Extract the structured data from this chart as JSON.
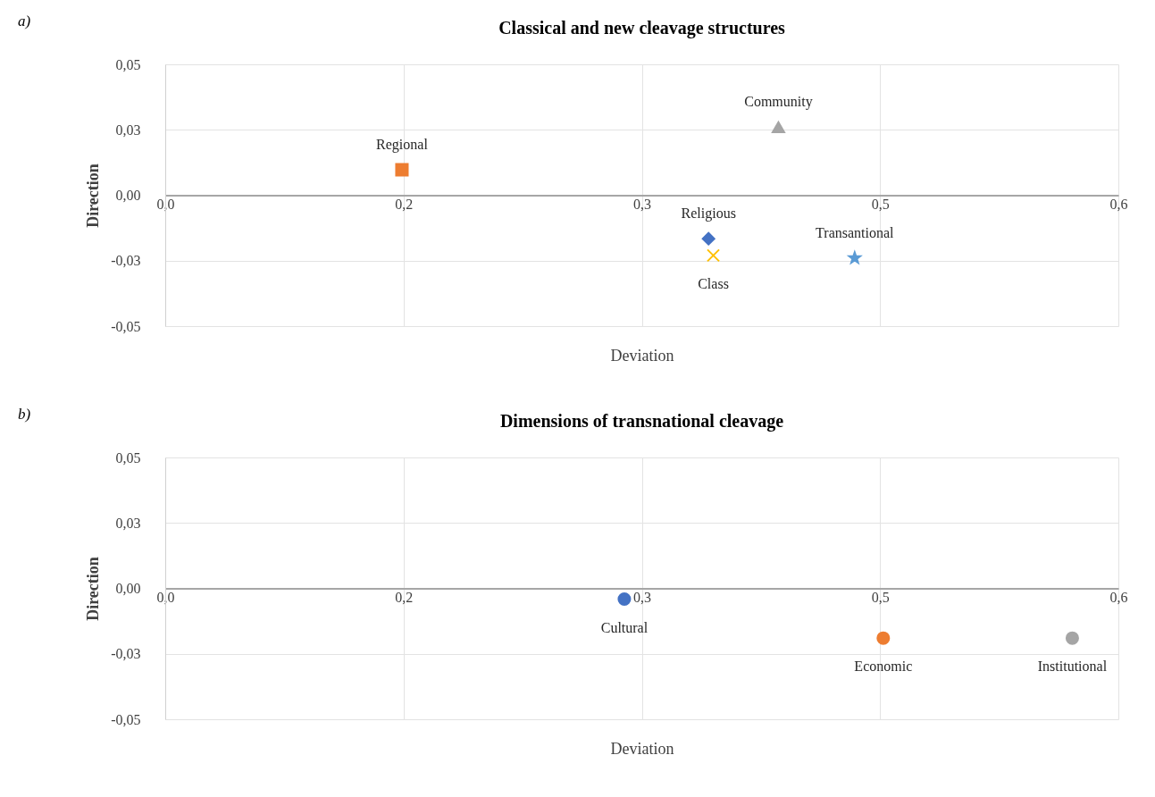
{
  "chart_data": [
    {
      "type": "scatter",
      "title": "Classical and new cleavage structures",
      "xlabel": "Deviation",
      "ylabel": "Direction",
      "annotations": [
        "a)"
      ],
      "grid": true,
      "xlim": [
        0,
        0.6
      ],
      "xticks": [
        {
          "value": 0,
          "label": "0,0"
        },
        {
          "value": 0.15,
          "label": "0,2"
        },
        {
          "value": 0.3,
          "label": "0,3"
        },
        {
          "value": 0.45,
          "label": "0,5"
        },
        {
          "value": 0.6,
          "label": "0,6"
        }
      ],
      "ylim": [
        -0.05,
        0.05
      ],
      "yticks": [
        {
          "value": -0.05,
          "label": "-0,05"
        },
        {
          "value": -0.025,
          "label": "-0,03"
        },
        {
          "value": 0,
          "label": "0,00"
        },
        {
          "value": 0.025,
          "label": "0,03"
        },
        {
          "value": 0.05,
          "label": "0,05"
        }
      ],
      "series": [
        {
          "name": "Regional",
          "color": "#ed7d31",
          "marker": "square",
          "x": [
            0.149
          ],
          "values": [
            0.0097
          ]
        },
        {
          "name": "Community",
          "color": "#a5a5a5",
          "marker": "triangle",
          "x": [
            0.386
          ],
          "values": [
            0.026
          ]
        },
        {
          "name": "Religious",
          "color": "#4472c4",
          "marker": "diamond",
          "x": [
            0.342
          ],
          "values": [
            -0.0166
          ]
        },
        {
          "name": "Class",
          "color": "#ffc000",
          "marker": "cross",
          "x": [
            0.345
          ],
          "values": [
            -0.023
          ]
        },
        {
          "name": "Transantional",
          "color": "#5b9bd5",
          "marker": "star",
          "x": [
            0.434
          ],
          "values": [
            -0.024
          ]
        }
      ]
    },
    {
      "type": "scatter",
      "title": "Dimensions of transnational cleavage",
      "xlabel": "Deviation",
      "ylabel": "Direction",
      "annotations": [
        "b)"
      ],
      "grid": true,
      "xlim": [
        0,
        0.6
      ],
      "xticks": [
        {
          "value": 0,
          "label": "0,0"
        },
        {
          "value": 0.15,
          "label": "0,2"
        },
        {
          "value": 0.3,
          "label": "0,3"
        },
        {
          "value": 0.45,
          "label": "0,5"
        },
        {
          "value": 0.6,
          "label": "0,6"
        }
      ],
      "ylim": [
        -0.05,
        0.05
      ],
      "yticks": [
        {
          "value": -0.05,
          "label": "-0,05"
        },
        {
          "value": -0.025,
          "label": "-0,03"
        },
        {
          "value": 0,
          "label": "0,00"
        },
        {
          "value": 0.025,
          "label": "0,03"
        },
        {
          "value": 0.05,
          "label": "0,05"
        }
      ],
      "series": [
        {
          "name": "Cultural",
          "color": "#4472c4",
          "marker": "circle",
          "x": [
            0.289
          ],
          "values": [
            -0.0041
          ]
        },
        {
          "name": "Economic",
          "color": "#ed7d31",
          "marker": "circle",
          "x": [
            0.452
          ],
          "values": [
            -0.019
          ]
        },
        {
          "name": "Institutional",
          "color": "#a5a5a5",
          "marker": "circle",
          "x": [
            0.571
          ],
          "values": [
            -0.019
          ]
        }
      ]
    }
  ]
}
